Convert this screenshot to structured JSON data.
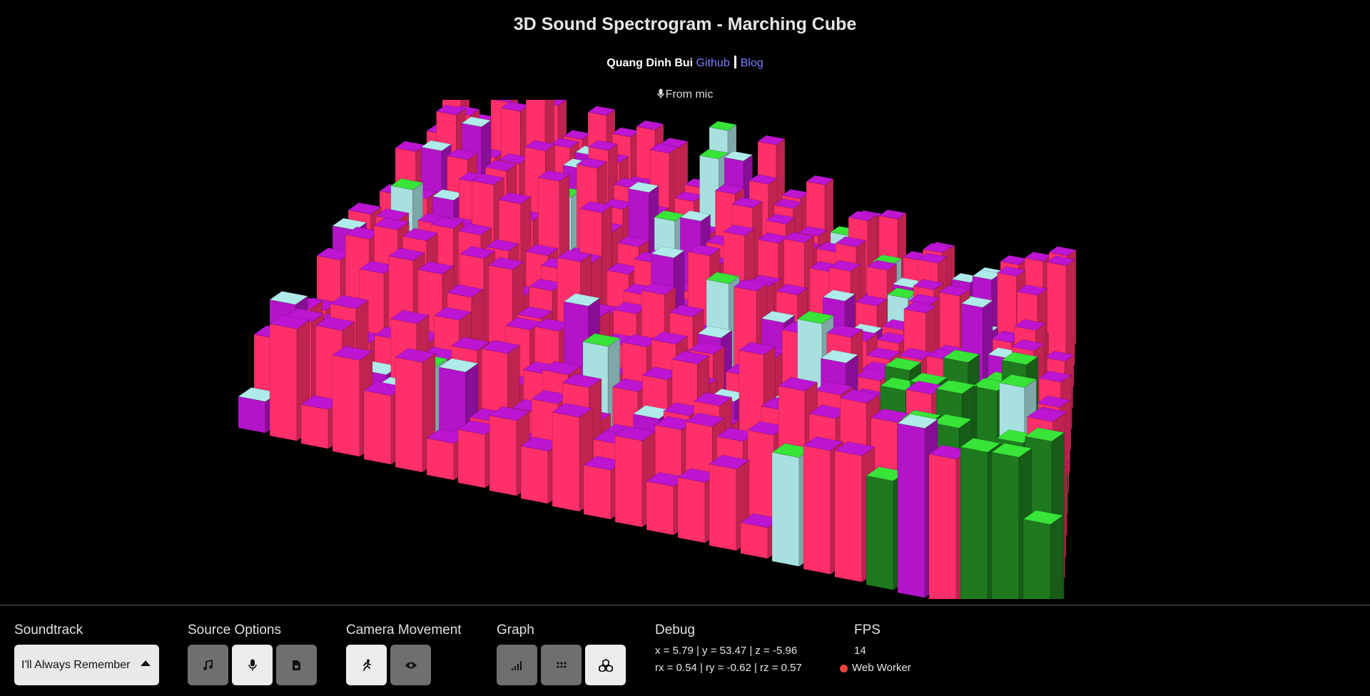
{
  "header": {
    "title": "3D Sound Spectrogram - Marching Cube",
    "author": "Quang Dinh Bui",
    "link_github": "Github",
    "link_blog": "Blog",
    "source_indicator": "From mic"
  },
  "controls": {
    "soundtrack": {
      "label": "Soundtrack",
      "selected": "I'll Always Remember"
    },
    "source_options": {
      "label": "Source Options",
      "buttons": [
        {
          "icon": "music-note-icon",
          "active": false
        },
        {
          "icon": "microphone-icon",
          "active": true
        },
        {
          "icon": "audio-file-icon",
          "active": false
        }
      ]
    },
    "camera_movement": {
      "label": "Camera Movement",
      "buttons": [
        {
          "icon": "running-person-icon",
          "active": true
        },
        {
          "icon": "eye-icon",
          "active": false
        }
      ]
    },
    "graph": {
      "label": "Graph",
      "buttons": [
        {
          "icon": "bar-graph-icon",
          "active": false
        },
        {
          "icon": "dots-grid-icon",
          "active": false
        },
        {
          "icon": "cubes-icon",
          "active": true
        }
      ]
    },
    "debug": {
      "label": "Debug",
      "line1": "x = 5.79 | y = 53.47 | z = -5.96",
      "line2": "rx = 0.54 | ry = -0.62 | rz = 0.57"
    },
    "fps": {
      "label": "FPS",
      "value": "14",
      "worker": "Web Worker",
      "worker_status_color": "#e8453c"
    }
  },
  "colors": {
    "pink": "#ff2f6a",
    "magenta": "#b414c8",
    "light_cyan": "#a8e0e0",
    "green": "#35d935",
    "dark_green": "#1f7a1f",
    "link": "#7f7fff"
  }
}
